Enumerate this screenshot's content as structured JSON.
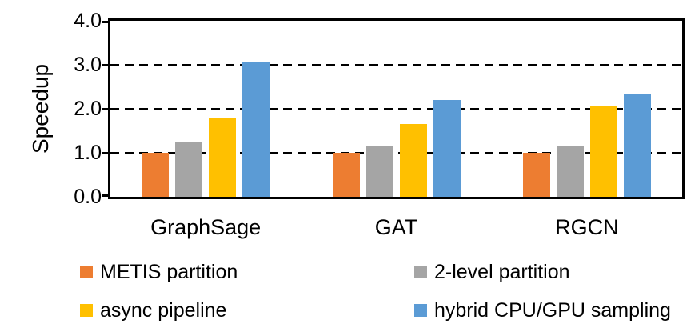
{
  "chart_data": {
    "type": "bar",
    "title": "",
    "xlabel": "",
    "ylabel": "Speedup",
    "categories": [
      "GraphSage",
      "GAT",
      "RGCN"
    ],
    "series": [
      {
        "name": "METIS partition",
        "color": "#ED7D31",
        "values": [
          1.0,
          1.0,
          1.0
        ]
      },
      {
        "name": "2-level partition",
        "color": "#A5A5A5",
        "values": [
          1.26,
          1.17,
          1.15
        ]
      },
      {
        "name": "async pipeline",
        "color": "#FFC000",
        "values": [
          1.78,
          1.66,
          2.05
        ]
      },
      {
        "name": "hybrid CPU/GPU sampling",
        "color": "#5B9BD5",
        "values": [
          3.05,
          2.2,
          2.35
        ]
      }
    ],
    "ylim": [
      0,
      4
    ],
    "ytick_labels": [
      "0.0",
      "1.0",
      "2.0",
      "3.0",
      "4.0"
    ],
    "ytick_step": 1.0,
    "grid": {
      "horizontal": true,
      "style": "dashed",
      "color": "#000000"
    },
    "axis_color": "#000000",
    "legend_position": "bottom",
    "legend_columns": 2
  }
}
